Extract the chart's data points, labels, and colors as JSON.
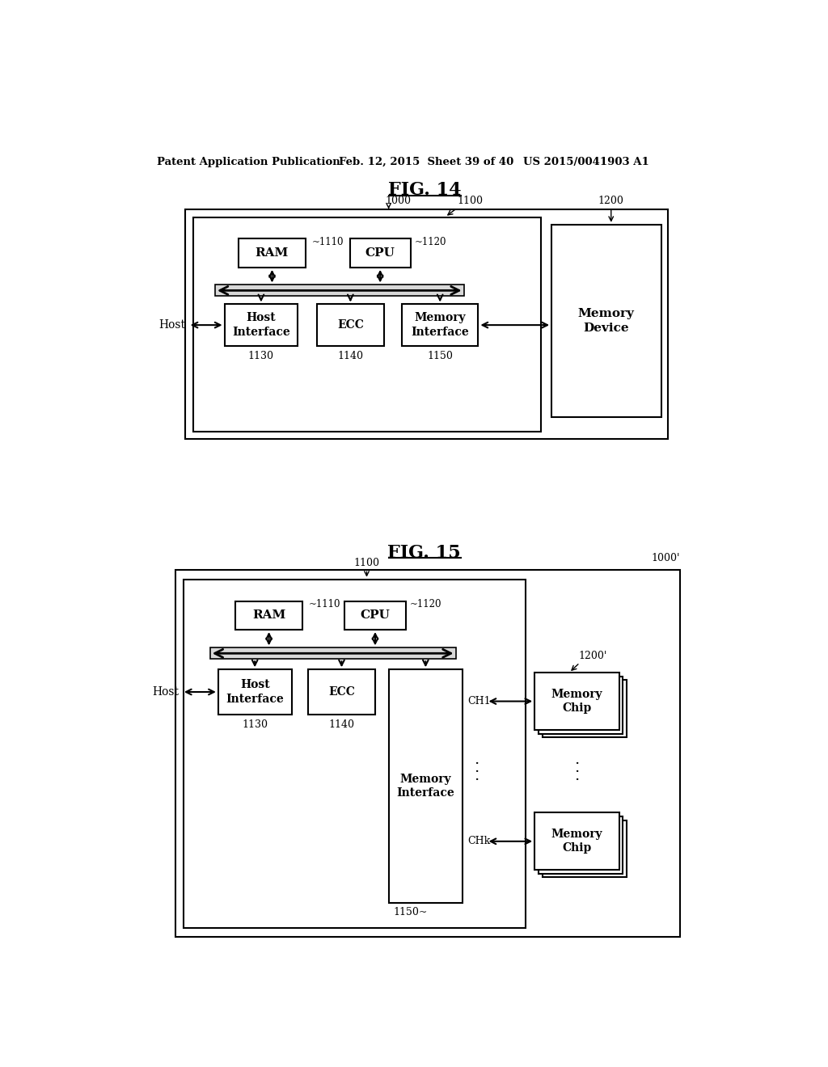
{
  "bg_color": "#ffffff",
  "header_text": "Patent Application Publication",
  "header_date": "Feb. 12, 2015  Sheet 39 of 40",
  "header_patent": "US 2015/0041903 A1",
  "fig14_title": "FIG. 14",
  "fig15_title": "FIG. 15"
}
